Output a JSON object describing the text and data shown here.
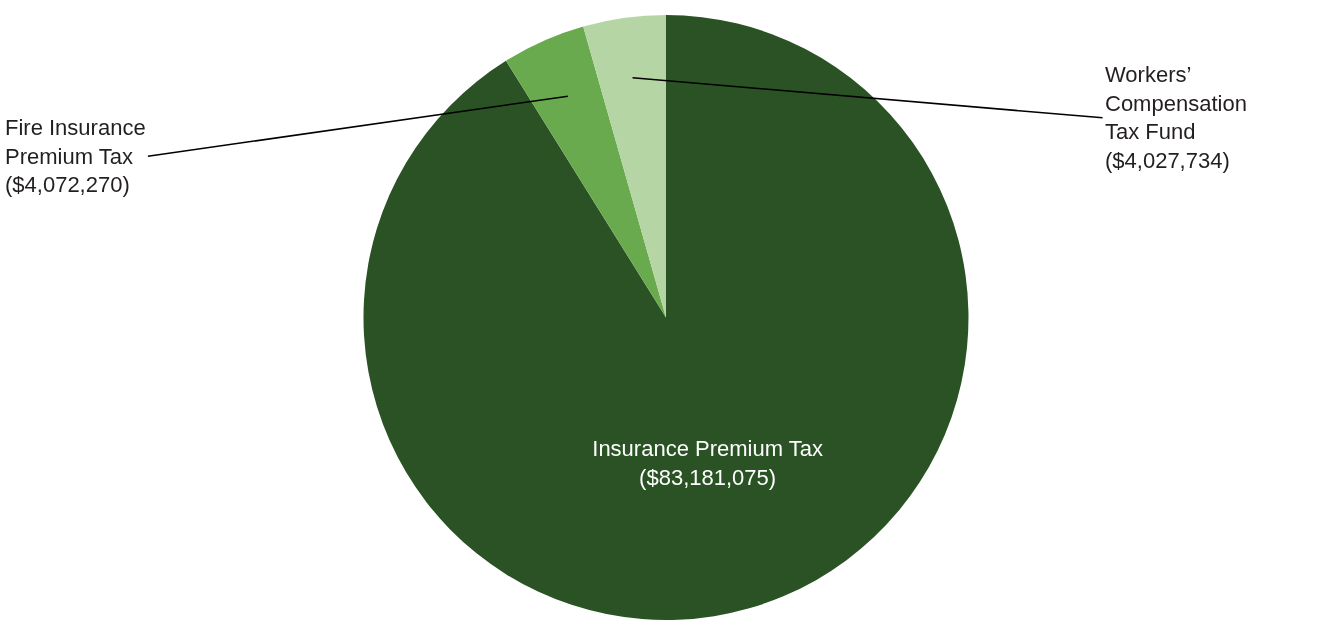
{
  "chart_data": {
    "type": "pie",
    "categories": [
      "Insurance Premium Tax",
      "Fire Insurance Premium Tax",
      "Workers’ Compensation Tax Fund"
    ],
    "values": [
      83181075,
      4072270,
      4027734
    ],
    "value_labels": [
      "($83,181,075)",
      "($4,072,270)",
      "($4,027,734)"
    ],
    "colors": [
      "#2b5225",
      "#6aaa4f",
      "#b5d6a4"
    ],
    "legend": false
  }
}
